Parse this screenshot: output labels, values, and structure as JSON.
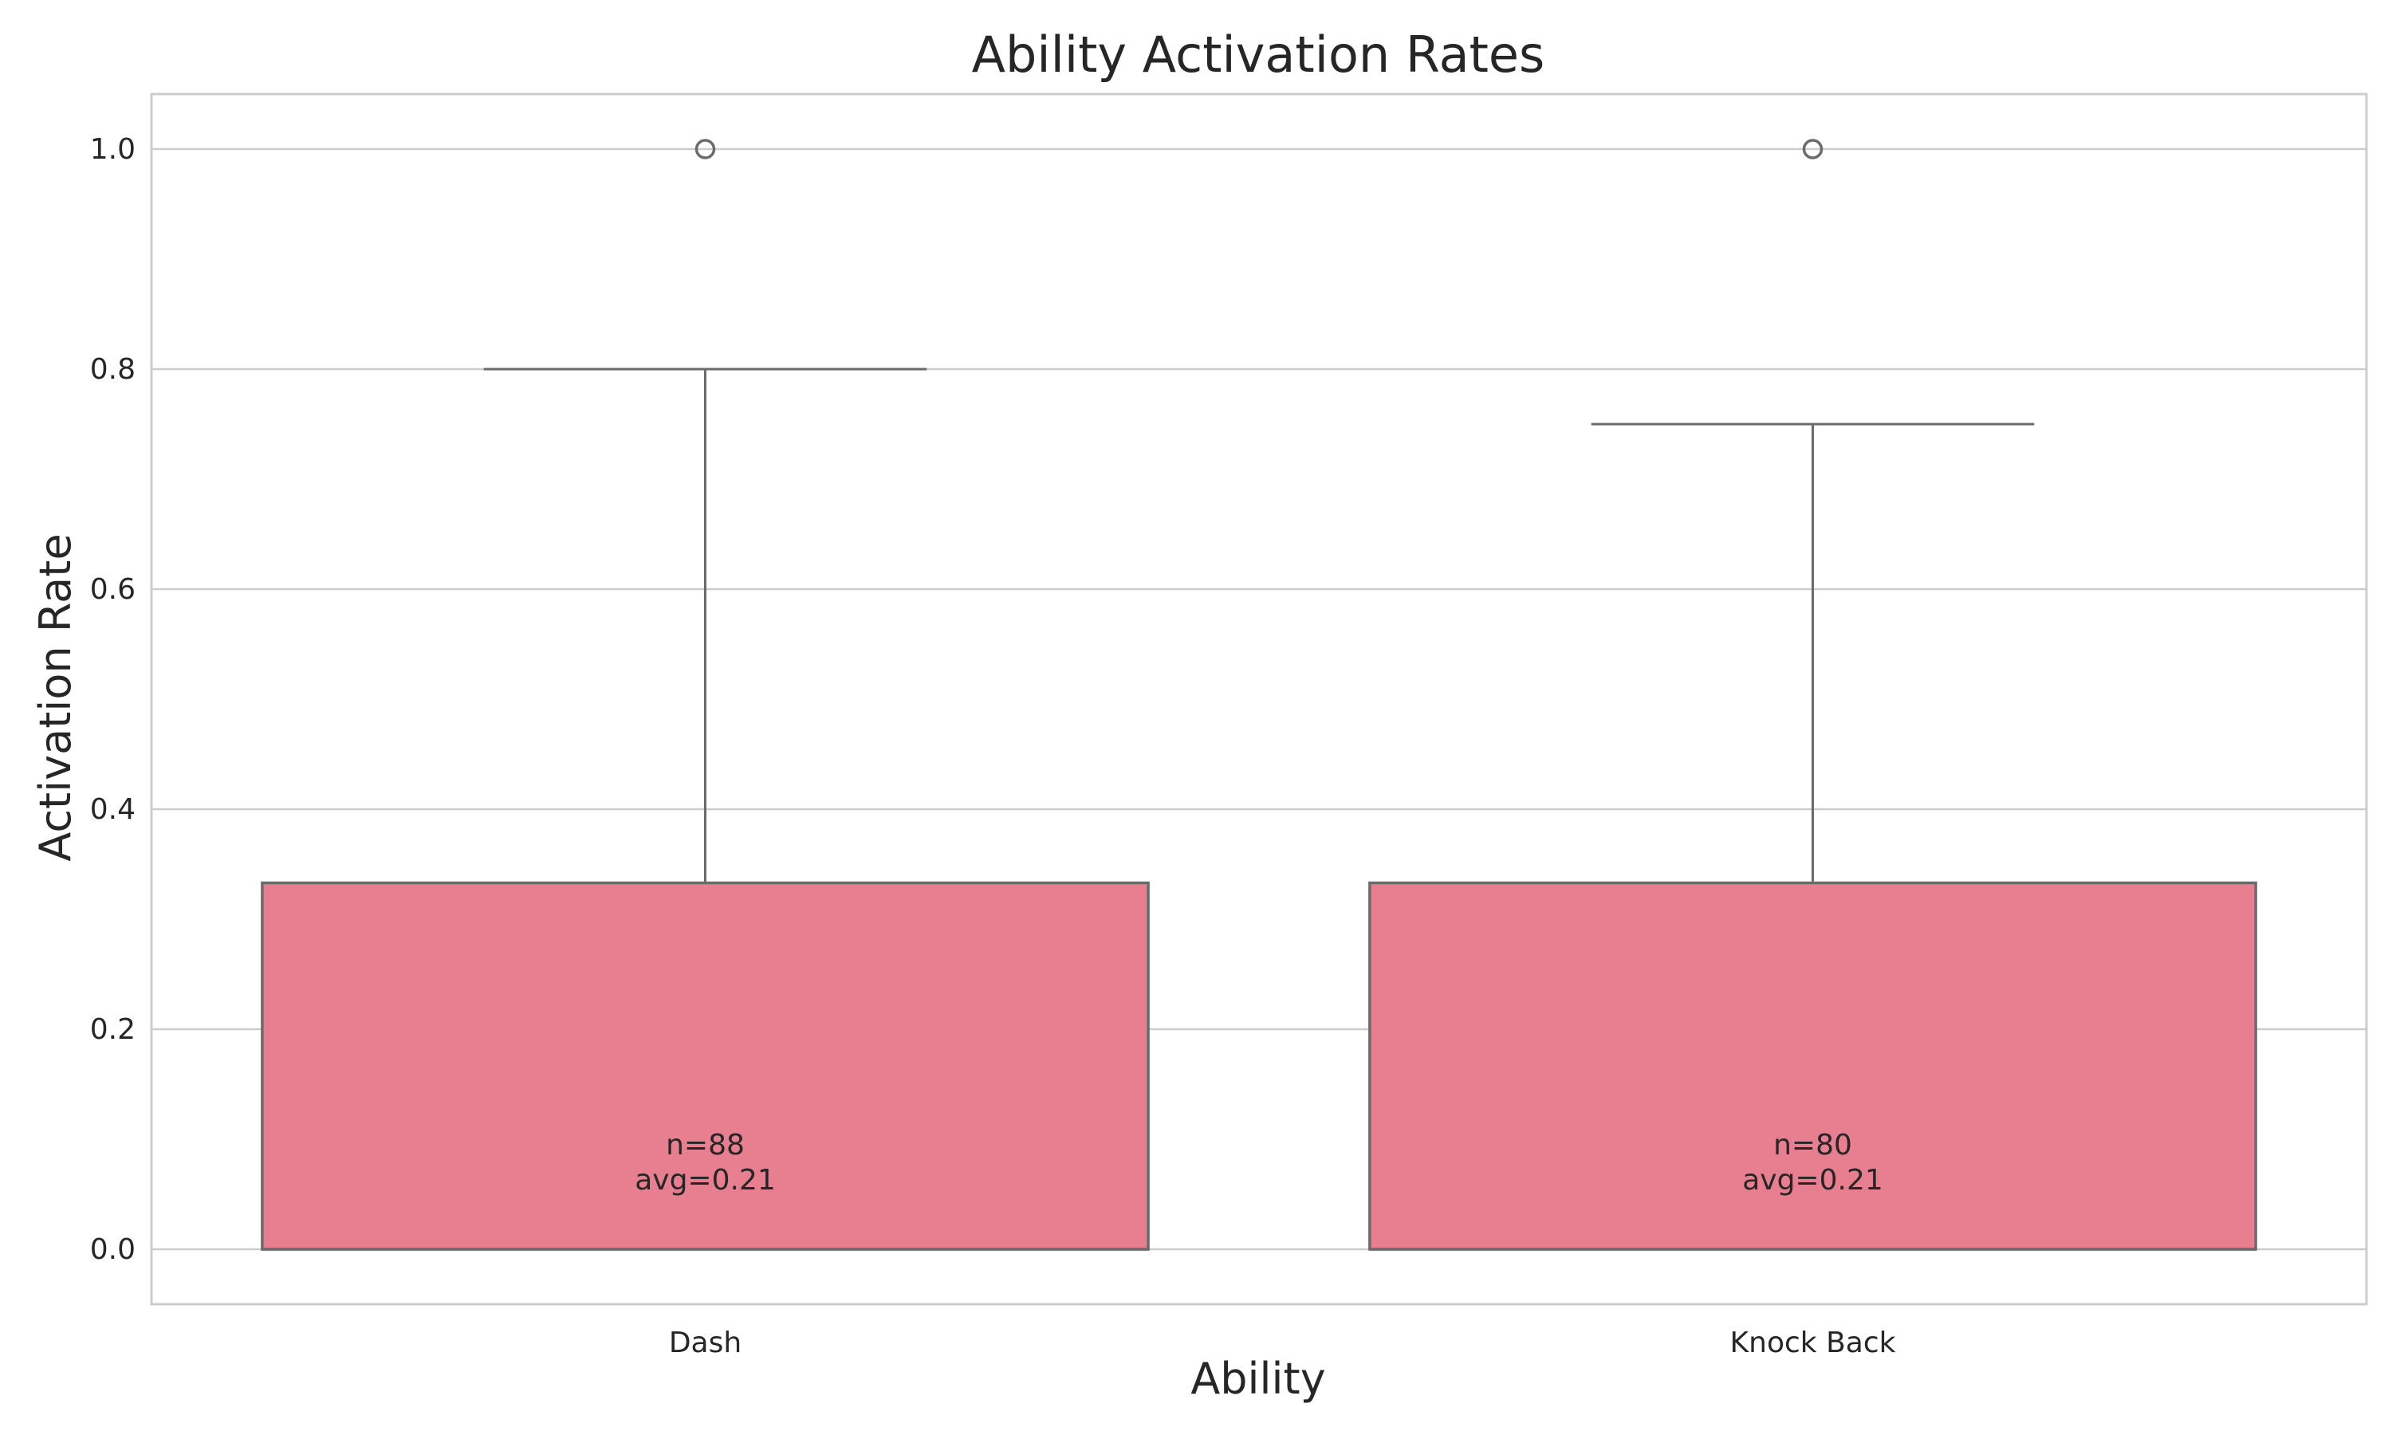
{
  "chart_data": {
    "type": "box",
    "title": "Ability Activation Rates",
    "xlabel": "Ability",
    "ylabel": "Activation Rate",
    "ylim": [
      -0.05,
      1.05
    ],
    "yticks": [
      0.0,
      0.2,
      0.4,
      0.6,
      0.8,
      1.0
    ],
    "ytick_labels": [
      "0.0",
      "0.2",
      "0.4",
      "0.6",
      "0.8",
      "1.0"
    ],
    "grid": true,
    "box_color": "#e77f90",
    "edge_color": "#6b6b6b",
    "categories": [
      "Dash",
      "Knock Back"
    ],
    "boxes": [
      {
        "category": "Dash",
        "q1": 0.0,
        "median": 0.0,
        "q3": 0.333,
        "whisker_low": 0.0,
        "whisker_high": 0.8,
        "outliers": [
          1.0
        ],
        "annotation": [
          "n=88",
          "avg=0.21"
        ]
      },
      {
        "category": "Knock Back",
        "q1": 0.0,
        "median": 0.0,
        "q3": 0.333,
        "whisker_low": 0.0,
        "whisker_high": 0.75,
        "outliers": [
          1.0
        ],
        "annotation": [
          "n=80",
          "avg=0.21"
        ]
      }
    ]
  }
}
